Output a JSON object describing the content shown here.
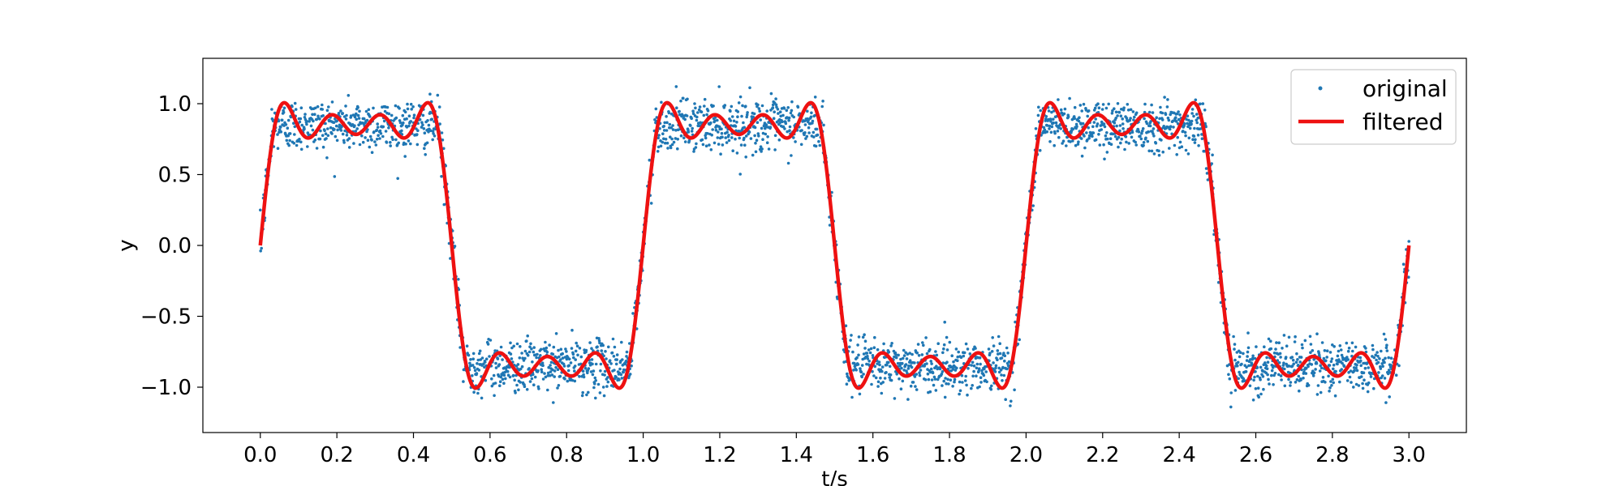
{
  "chart_data": {
    "type": "line",
    "title": "",
    "xlabel": "t/s",
    "ylabel": "y",
    "xlim": [
      -0.15,
      3.15
    ],
    "ylim": [
      -1.32,
      1.32
    ],
    "x_ticks": [
      0.0,
      0.2,
      0.4,
      0.6,
      0.8,
      1.0,
      1.2,
      1.4,
      1.6,
      1.8,
      2.0,
      2.2,
      2.4,
      2.6,
      2.8,
      3.0
    ],
    "x_tick_labels": [
      "0.0",
      "0.2",
      "0.4",
      "0.6",
      "0.8",
      "1.0",
      "1.2",
      "1.4",
      "1.6",
      "1.8",
      "2.0",
      "2.2",
      "2.4",
      "2.6",
      "2.8",
      "3.0"
    ],
    "y_ticks": [
      -1.0,
      -0.5,
      0.0,
      0.5,
      1.0
    ],
    "y_tick_labels": [
      "−1.0",
      "−0.5",
      "0.0",
      "0.5",
      "1.0"
    ],
    "grid": false,
    "legend_position": "top-right",
    "series": [
      {
        "name": "original",
        "kind": "scatter",
        "color": "#1f77b4",
        "signal": "square wave, period 1.0 s, amplitude 0.85, with additive noise",
        "period": 1.0,
        "amplitude": 0.85,
        "noise_std": 0.09,
        "x_range": [
          0.0,
          3.0
        ],
        "n_points": 3000
      },
      {
        "name": "filtered",
        "kind": "line",
        "color": "#ee1111",
        "signal": "low-pass filtered square wave (Fourier harmonics 1, 3, 5, 7)",
        "period": 1.0,
        "amplitude": 0.85,
        "harmonics": [
          1,
          3,
          5,
          7
        ],
        "x_range": [
          0.0,
          3.0
        ]
      }
    ]
  }
}
